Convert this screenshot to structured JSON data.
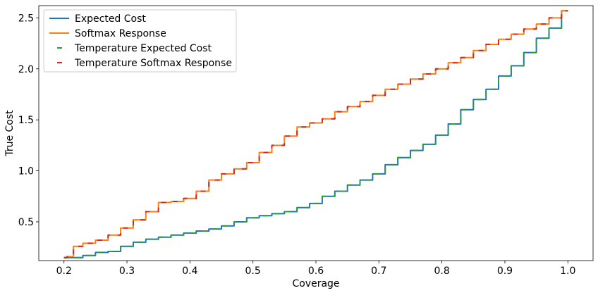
{
  "chart_data": {
    "type": "line",
    "title": "",
    "xlabel": "Coverage",
    "ylabel": "True Cost",
    "xlim": [
      0.16,
      1.04
    ],
    "ylim": [
      0.12,
      2.62
    ],
    "grid": false,
    "legend_position": "top-left",
    "x_ticks": [
      0.2,
      0.3,
      0.4,
      0.5,
      0.6,
      0.7,
      0.8,
      0.9,
      1.0
    ],
    "x_tick_labels": [
      "0.2",
      "0.3",
      "0.4",
      "0.5",
      "0.6",
      "0.7",
      "0.8",
      "0.9",
      "1.0"
    ],
    "y_ticks": [
      0.5,
      1.0,
      1.5,
      2.0,
      2.5
    ],
    "y_tick_labels": [
      "0.5",
      "1.0",
      "1.5",
      "2.0",
      "2.5"
    ],
    "series": [
      {
        "name": "Expected Cost",
        "color": "#1f77b4",
        "style": "solid",
        "x": [
          0.2,
          0.22,
          0.24,
          0.26,
          0.28,
          0.3,
          0.32,
          0.34,
          0.36,
          0.38,
          0.4,
          0.42,
          0.44,
          0.46,
          0.48,
          0.5,
          0.52,
          0.54,
          0.56,
          0.58,
          0.6,
          0.62,
          0.64,
          0.66,
          0.68,
          0.7,
          0.72,
          0.74,
          0.76,
          0.78,
          0.8,
          0.82,
          0.84,
          0.86,
          0.88,
          0.9,
          0.92,
          0.94,
          0.96,
          0.98,
          1.0
        ],
        "y": [
          0.15,
          0.15,
          0.17,
          0.2,
          0.21,
          0.26,
          0.3,
          0.33,
          0.35,
          0.37,
          0.39,
          0.41,
          0.43,
          0.46,
          0.5,
          0.54,
          0.56,
          0.58,
          0.6,
          0.64,
          0.68,
          0.75,
          0.8,
          0.86,
          0.91,
          0.97,
          1.06,
          1.13,
          1.2,
          1.26,
          1.35,
          1.46,
          1.6,
          1.7,
          1.8,
          1.93,
          2.03,
          2.16,
          2.3,
          2.4,
          2.57
        ]
      },
      {
        "name": "Softmax Response",
        "color": "#ff7f0e",
        "style": "solid",
        "x": [
          0.2,
          0.21,
          0.22,
          0.24,
          0.26,
          0.28,
          0.3,
          0.32,
          0.34,
          0.36,
          0.38,
          0.4,
          0.42,
          0.44,
          0.46,
          0.48,
          0.5,
          0.52,
          0.54,
          0.56,
          0.58,
          0.6,
          0.62,
          0.64,
          0.66,
          0.68,
          0.7,
          0.72,
          0.74,
          0.76,
          0.78,
          0.8,
          0.82,
          0.84,
          0.86,
          0.88,
          0.9,
          0.92,
          0.94,
          0.96,
          0.98,
          1.0
        ],
        "y": [
          0.15,
          0.16,
          0.26,
          0.29,
          0.32,
          0.37,
          0.44,
          0.52,
          0.6,
          0.69,
          0.7,
          0.73,
          0.8,
          0.91,
          0.97,
          1.02,
          1.08,
          1.18,
          1.25,
          1.34,
          1.43,
          1.47,
          1.51,
          1.58,
          1.63,
          1.68,
          1.74,
          1.8,
          1.85,
          1.9,
          1.95,
          2.0,
          2.06,
          2.11,
          2.18,
          2.24,
          2.29,
          2.34,
          2.39,
          2.44,
          2.5,
          2.57
        ]
      },
      {
        "name": "Temperature Expected Cost",
        "color": "#2ca02c",
        "style": "dashed",
        "x": [
          0.2,
          0.22,
          0.24,
          0.26,
          0.28,
          0.3,
          0.32,
          0.34,
          0.36,
          0.38,
          0.4,
          0.42,
          0.44,
          0.46,
          0.48,
          0.5,
          0.52,
          0.54,
          0.56,
          0.58,
          0.6,
          0.62,
          0.64,
          0.66,
          0.68,
          0.7,
          0.72,
          0.74,
          0.76,
          0.78,
          0.8,
          0.82,
          0.84,
          0.86,
          0.88,
          0.9,
          0.92,
          0.94,
          0.96,
          0.98,
          1.0
        ],
        "y": [
          0.15,
          0.15,
          0.17,
          0.2,
          0.21,
          0.26,
          0.3,
          0.33,
          0.35,
          0.37,
          0.39,
          0.41,
          0.43,
          0.46,
          0.5,
          0.54,
          0.56,
          0.58,
          0.6,
          0.64,
          0.68,
          0.75,
          0.8,
          0.86,
          0.91,
          0.97,
          1.06,
          1.13,
          1.2,
          1.26,
          1.35,
          1.46,
          1.6,
          1.7,
          1.8,
          1.93,
          2.03,
          2.16,
          2.3,
          2.4,
          2.57
        ]
      },
      {
        "name": "Temperature Softmax Response",
        "color": "#d62728",
        "style": "dashed",
        "x": [
          0.2,
          0.21,
          0.22,
          0.24,
          0.26,
          0.28,
          0.3,
          0.32,
          0.34,
          0.36,
          0.38,
          0.4,
          0.42,
          0.44,
          0.46,
          0.48,
          0.5,
          0.52,
          0.54,
          0.56,
          0.58,
          0.6,
          0.62,
          0.64,
          0.66,
          0.68,
          0.7,
          0.72,
          0.74,
          0.76,
          0.78,
          0.8,
          0.82,
          0.84,
          0.86,
          0.88,
          0.9,
          0.92,
          0.94,
          0.96,
          0.98,
          1.0
        ],
        "y": [
          0.15,
          0.16,
          0.26,
          0.29,
          0.32,
          0.37,
          0.44,
          0.52,
          0.6,
          0.69,
          0.7,
          0.73,
          0.8,
          0.91,
          0.97,
          1.02,
          1.08,
          1.18,
          1.25,
          1.34,
          1.43,
          1.47,
          1.51,
          1.58,
          1.63,
          1.68,
          1.74,
          1.8,
          1.85,
          1.9,
          1.95,
          2.0,
          2.06,
          2.11,
          2.18,
          2.24,
          2.29,
          2.34,
          2.39,
          2.44,
          2.5,
          2.57
        ]
      }
    ]
  }
}
